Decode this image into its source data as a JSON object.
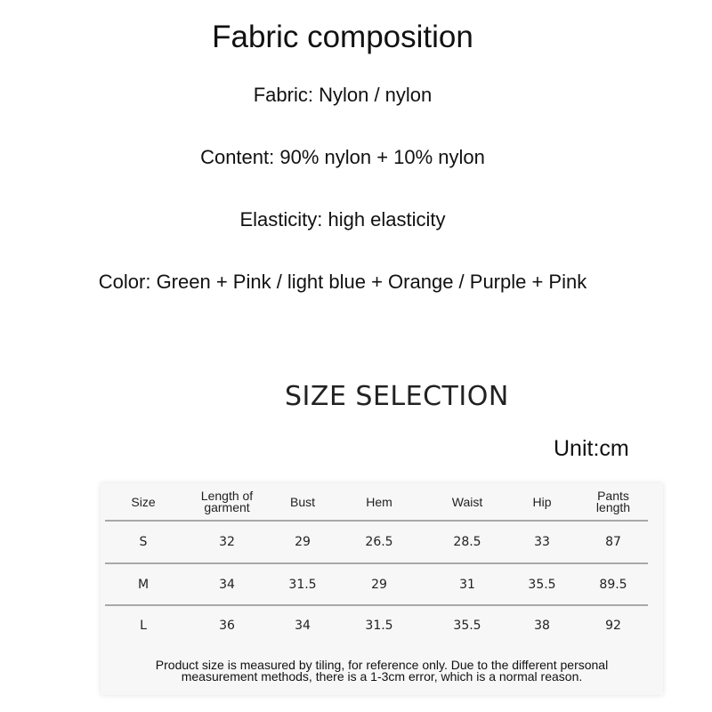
{
  "composition": {
    "title": "Fabric composition",
    "lines": [
      "Fabric: Nylon / nylon",
      "Content: 90% nylon + 10% nylon",
      "Elasticity: high elasticity",
      "Color: Green + Pink / light blue + Orange / Purple + Pink"
    ]
  },
  "size_section": {
    "title": "SIZE SELECTION",
    "unit": "Unit:cm",
    "headers": [
      "Size",
      "Length of\ngarment",
      "Bust",
      "Hem",
      "Waist",
      "Hip",
      "Pants\nlength"
    ],
    "rows": [
      [
        "S",
        "32",
        "29",
        "26.5",
        "28.5",
        "33",
        "87"
      ],
      [
        "M",
        "34",
        "31.5",
        "29",
        "31",
        "35.5",
        "89.5"
      ],
      [
        "L",
        "36",
        "34",
        "31.5",
        "35.5",
        "38",
        "92"
      ]
    ],
    "note_line1": "Product size is measured by tiling, for reference only. Due to the different personal",
    "note_line2": "measurement methods, there is a 1-3cm error, which is a normal reason."
  }
}
